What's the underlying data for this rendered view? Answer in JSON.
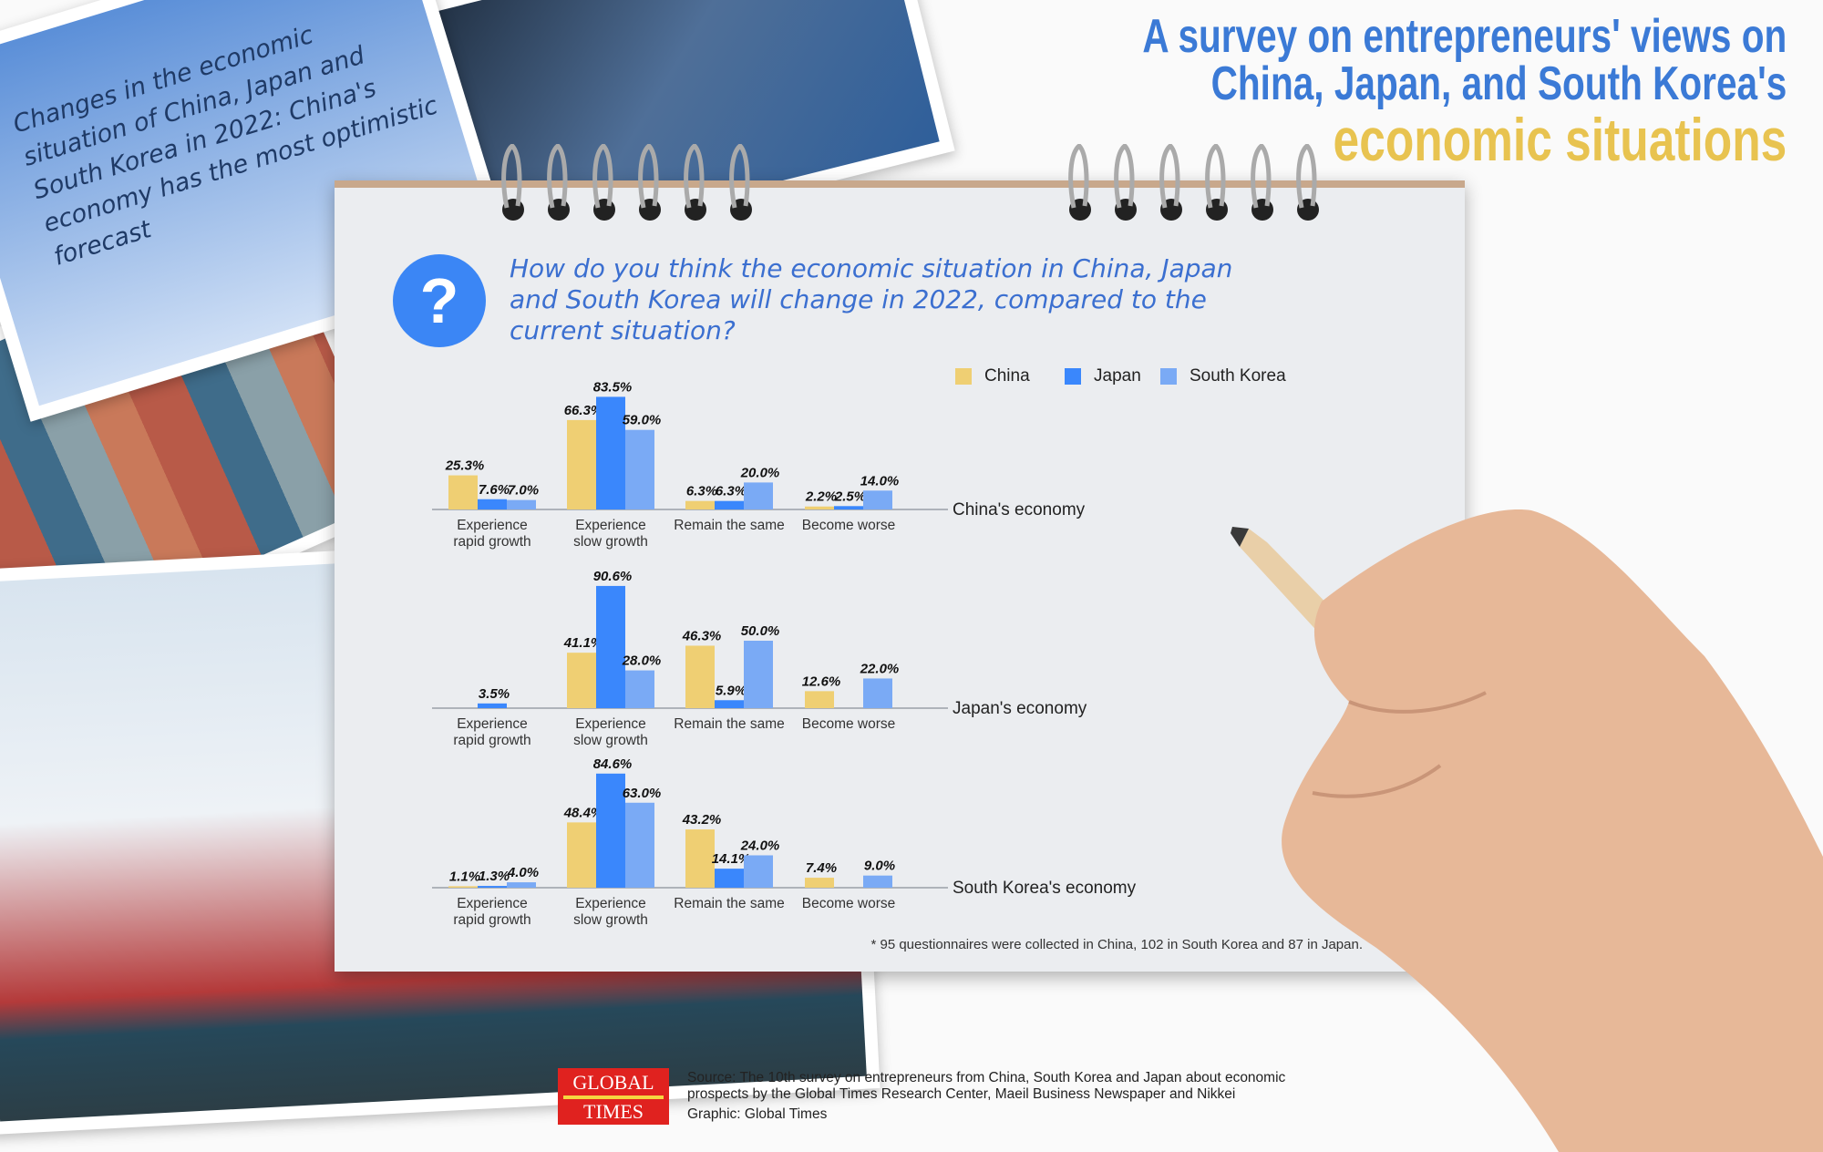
{
  "header": {
    "title_line1": "A survey on entrepreneurs' views on",
    "title_line2": "China, Japan, and South Korea's",
    "title_line3": "economic situations"
  },
  "side_caption": "Changes in the economic situation of China, Japan and South Korea in 2022: China's economy has the most optimistic forecast",
  "question": {
    "icon": "question-mark-icon",
    "text": "How do you think the economic situation in China, Japan and South Korea will change in 2022, compared to the current situation?"
  },
  "legend": [
    {
      "label": "China",
      "color": "#efcf73"
    },
    {
      "label": "Japan",
      "color": "#3a87fc"
    },
    {
      "label": "South Korea",
      "color": "#7aaaf5"
    }
  ],
  "chart_data": {
    "type": "bar",
    "categories": [
      "Experience rapid growth",
      "Experience slow growth",
      "Remain the same",
      "Become worse"
    ],
    "category_lines": [
      [
        "Experience",
        "rapid growth"
      ],
      [
        "Experience",
        "slow growth"
      ],
      [
        "Remain the same"
      ],
      [
        "Become worse"
      ]
    ],
    "panels": [
      {
        "label": "China's economy",
        "series": [
          {
            "name": "China",
            "values": [
              25.3,
              66.3,
              6.3,
              2.2
            ]
          },
          {
            "name": "Japan",
            "values": [
              7.6,
              83.5,
              6.3,
              2.5
            ]
          },
          {
            "name": "South Korea",
            "values": [
              7.0,
              59.0,
              20.0,
              14.0
            ]
          }
        ]
      },
      {
        "label": "Japan's economy",
        "series": [
          {
            "name": "China",
            "values": [
              null,
              41.1,
              46.3,
              12.6
            ]
          },
          {
            "name": "Japan",
            "values": [
              3.5,
              90.6,
              5.9,
              null
            ]
          },
          {
            "name": "South Korea",
            "values": [
              null,
              28.0,
              50.0,
              22.0
            ]
          }
        ]
      },
      {
        "label": "South Korea's economy",
        "series": [
          {
            "name": "China",
            "values": [
              1.1,
              48.4,
              43.2,
              7.4
            ]
          },
          {
            "name": "Japan",
            "values": [
              1.3,
              84.6,
              14.1,
              null
            ]
          },
          {
            "name": "South Korea",
            "values": [
              4.0,
              63.0,
              24.0,
              9.0
            ]
          }
        ]
      }
    ],
    "value_suffix": "%",
    "legend_position": "top-right",
    "grid": false
  },
  "footnote": "* 95 questionnaires were collected in China, 102 in South Korea and 87 in Japan.",
  "footer": {
    "logo_text": "GLOBAL TIMES",
    "logo_top": "GLOBAL",
    "logo_bottom": "TIMES",
    "source_line1": "Source: The 10th survey on entrepreneurs from China, South Korea and Japan about economic",
    "source_line2": "prospects by the Global Times Research Center, Maeil Business Newspaper and Nikkei",
    "graphic": "Graphic: Global Times"
  }
}
